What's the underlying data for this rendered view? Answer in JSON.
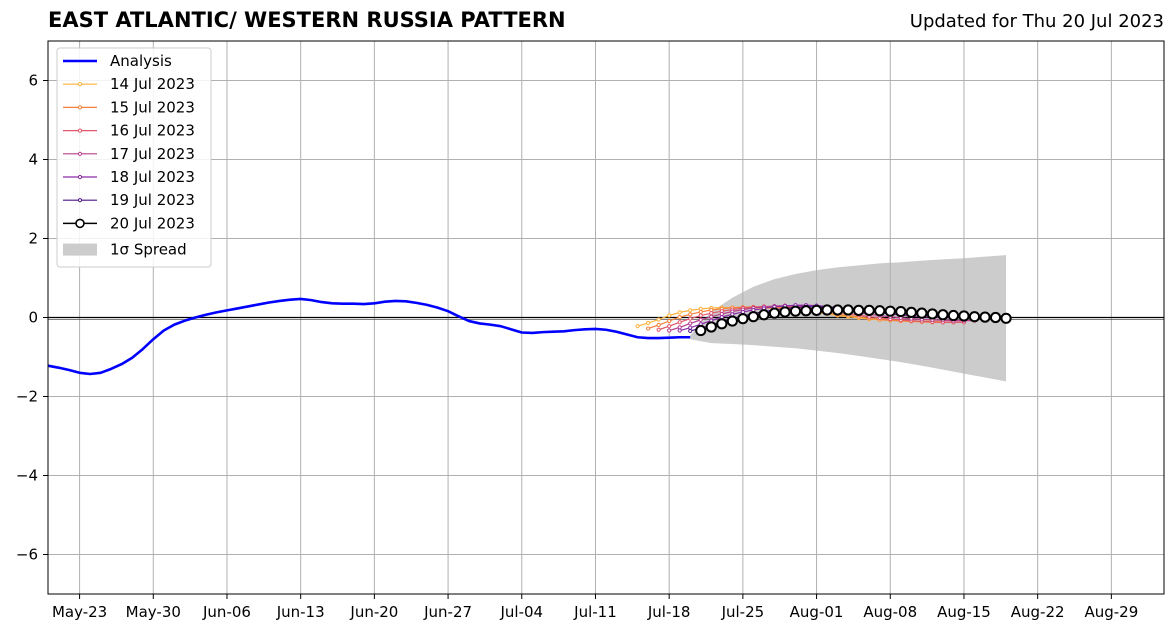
{
  "header": {
    "title": "EAST ATLANTIC/ WESTERN RUSSIA PATTERN",
    "updated": "Updated for Thu 20 Jul 2023"
  },
  "chart_data": {
    "type": "line",
    "title": "EAST ATLANTIC/ WESTERN RUSSIA PATTERN",
    "xlabel": "",
    "ylabel": "",
    "xlim": [
      "2023-05-20",
      "2023-09-03"
    ],
    "ylim": [
      -7,
      7
    ],
    "x_ticks": [
      "May-23",
      "May-30",
      "Jun-06",
      "Jun-13",
      "Jun-20",
      "Jun-27",
      "Jul-04",
      "Jul-11",
      "Jul-18",
      "Jul-25",
      "Aug-01",
      "Aug-08",
      "Aug-15",
      "Aug-22",
      "Aug-29"
    ],
    "x_tick_dates": [
      "2023-05-23",
      "2023-05-30",
      "2023-06-06",
      "2023-06-13",
      "2023-06-20",
      "2023-06-27",
      "2023-07-04",
      "2023-07-11",
      "2023-07-18",
      "2023-07-25",
      "2023-08-01",
      "2023-08-08",
      "2023-08-15",
      "2023-08-22",
      "2023-08-29"
    ],
    "y_ticks": [
      6,
      4,
      2,
      0,
      -2,
      -4,
      -6
    ],
    "y_tick_labels": [
      "6",
      "4",
      "2",
      "0",
      "−2",
      "−4",
      "−6"
    ],
    "grid": true,
    "legend_position": "top-left",
    "series": [
      {
        "name": "Analysis",
        "color": "#0000ff",
        "x": [
          "2023-05-20",
          "2023-05-21",
          "2023-05-22",
          "2023-05-23",
          "2023-05-24",
          "2023-05-25",
          "2023-05-26",
          "2023-05-27",
          "2023-05-28",
          "2023-05-29",
          "2023-05-30",
          "2023-05-31",
          "2023-06-01",
          "2023-06-02",
          "2023-06-03",
          "2023-06-04",
          "2023-06-05",
          "2023-06-06",
          "2023-06-07",
          "2023-06-08",
          "2023-06-09",
          "2023-06-10",
          "2023-06-11",
          "2023-06-12",
          "2023-06-13",
          "2023-06-14",
          "2023-06-15",
          "2023-06-16",
          "2023-06-17",
          "2023-06-18",
          "2023-06-19",
          "2023-06-20",
          "2023-06-21",
          "2023-06-22",
          "2023-06-23",
          "2023-06-24",
          "2023-06-25",
          "2023-06-26",
          "2023-06-27",
          "2023-06-28",
          "2023-06-29",
          "2023-06-30",
          "2023-07-01",
          "2023-07-02",
          "2023-07-03",
          "2023-07-04",
          "2023-07-05",
          "2023-07-06",
          "2023-07-07",
          "2023-07-08",
          "2023-07-09",
          "2023-07-10",
          "2023-07-11",
          "2023-07-12",
          "2023-07-13",
          "2023-07-14",
          "2023-07-15",
          "2023-07-16",
          "2023-07-17",
          "2023-07-18",
          "2023-07-19",
          "2023-07-20"
        ],
        "y": [
          -1.22,
          -1.27,
          -1.33,
          -1.4,
          -1.43,
          -1.4,
          -1.3,
          -1.18,
          -1.02,
          -0.8,
          -0.55,
          -0.33,
          -0.18,
          -0.08,
          0.0,
          0.07,
          0.13,
          0.18,
          0.23,
          0.28,
          0.33,
          0.38,
          0.42,
          0.45,
          0.47,
          0.44,
          0.39,
          0.36,
          0.35,
          0.35,
          0.34,
          0.36,
          0.4,
          0.42,
          0.41,
          0.37,
          0.32,
          0.25,
          0.16,
          0.03,
          -0.09,
          -0.15,
          -0.18,
          -0.22,
          -0.3,
          -0.38,
          -0.39,
          -0.37,
          -0.36,
          -0.35,
          -0.32,
          -0.3,
          -0.29,
          -0.31,
          -0.36,
          -0.43,
          -0.5,
          -0.52,
          -0.52,
          -0.51,
          -0.5,
          -0.5
        ]
      },
      {
        "name": "14 Jul 2023",
        "color": "#fcb13a",
        "x": [
          "2023-07-15",
          "2023-07-16",
          "2023-07-17",
          "2023-07-18",
          "2023-07-19",
          "2023-07-20",
          "2023-07-21",
          "2023-07-22",
          "2023-07-23",
          "2023-07-24",
          "2023-07-25",
          "2023-07-26",
          "2023-07-27",
          "2023-07-28",
          "2023-07-29",
          "2023-07-30",
          "2023-07-31",
          "2023-08-01",
          "2023-08-02",
          "2023-08-03",
          "2023-08-04",
          "2023-08-05",
          "2023-08-06",
          "2023-08-07",
          "2023-08-08",
          "2023-08-09",
          "2023-08-10",
          "2023-08-11",
          "2023-08-12",
          "2023-08-13"
        ],
        "y": [
          -0.22,
          -0.14,
          -0.05,
          0.05,
          0.13,
          0.18,
          0.22,
          0.24,
          0.25,
          0.25,
          0.25,
          0.25,
          0.24,
          0.23,
          0.21,
          0.18,
          0.15,
          0.12,
          0.09,
          0.05,
          0.02,
          -0.01,
          -0.04,
          -0.06,
          -0.07,
          -0.08,
          -0.09,
          -0.09,
          -0.1,
          -0.1
        ]
      },
      {
        "name": "15 Jul 2023",
        "color": "#f5803b",
        "x": [
          "2023-07-16",
          "2023-07-17",
          "2023-07-18",
          "2023-07-19",
          "2023-07-20",
          "2023-07-21",
          "2023-07-22",
          "2023-07-23",
          "2023-07-24",
          "2023-07-25",
          "2023-07-26",
          "2023-07-27",
          "2023-07-28",
          "2023-07-29",
          "2023-07-30",
          "2023-07-31",
          "2023-08-01",
          "2023-08-02",
          "2023-08-03",
          "2023-08-04",
          "2023-08-05",
          "2023-08-06",
          "2023-08-07",
          "2023-08-08",
          "2023-08-09",
          "2023-08-10",
          "2023-08-11",
          "2023-08-12",
          "2023-08-13",
          "2023-08-14"
        ],
        "y": [
          -0.28,
          -0.19,
          -0.09,
          0.01,
          0.08,
          0.14,
          0.19,
          0.22,
          0.25,
          0.26,
          0.27,
          0.27,
          0.26,
          0.24,
          0.22,
          0.19,
          0.16,
          0.12,
          0.08,
          0.05,
          0.02,
          -0.02,
          -0.05,
          -0.07,
          -0.09,
          -0.1,
          -0.11,
          -0.12,
          -0.12,
          -0.12
        ]
      },
      {
        "name": "16 Jul 2023",
        "color": "#e0566a",
        "x": [
          "2023-07-17",
          "2023-07-18",
          "2023-07-19",
          "2023-07-20",
          "2023-07-21",
          "2023-07-22",
          "2023-07-23",
          "2023-07-24",
          "2023-07-25",
          "2023-07-26",
          "2023-07-27",
          "2023-07-28",
          "2023-07-29",
          "2023-07-30",
          "2023-07-31",
          "2023-08-01",
          "2023-08-02",
          "2023-08-03",
          "2023-08-04",
          "2023-08-05",
          "2023-08-06",
          "2023-08-07",
          "2023-08-08",
          "2023-08-09",
          "2023-08-10",
          "2023-08-11",
          "2023-08-12",
          "2023-08-13",
          "2023-08-14",
          "2023-08-15"
        ],
        "y": [
          -0.31,
          -0.22,
          -0.12,
          -0.03,
          0.05,
          0.11,
          0.16,
          0.2,
          0.24,
          0.26,
          0.28,
          0.28,
          0.27,
          0.26,
          0.24,
          0.21,
          0.17,
          0.13,
          0.1,
          0.06,
          0.02,
          -0.01,
          -0.04,
          -0.06,
          -0.08,
          -0.1,
          -0.11,
          -0.12,
          -0.12,
          -0.12
        ]
      },
      {
        "name": "17 Jul 2023",
        "color": "#b93e8b",
        "x": [
          "2023-07-18",
          "2023-07-19",
          "2023-07-20",
          "2023-07-21",
          "2023-07-22",
          "2023-07-23",
          "2023-07-24",
          "2023-07-25",
          "2023-07-26",
          "2023-07-27",
          "2023-07-28",
          "2023-07-29",
          "2023-07-30",
          "2023-07-31",
          "2023-08-01",
          "2023-08-02",
          "2023-08-03",
          "2023-08-04",
          "2023-08-05",
          "2023-08-06",
          "2023-08-07",
          "2023-08-08",
          "2023-08-09",
          "2023-08-10",
          "2023-08-11",
          "2023-08-12",
          "2023-08-13",
          "2023-08-14",
          "2023-08-15",
          "2023-08-16"
        ],
        "y": [
          -0.33,
          -0.25,
          -0.15,
          -0.06,
          0.02,
          0.09,
          0.15,
          0.2,
          0.24,
          0.27,
          0.29,
          0.3,
          0.3,
          0.28,
          0.26,
          0.23,
          0.2,
          0.16,
          0.12,
          0.08,
          0.05,
          0.02,
          -0.01,
          -0.03,
          -0.05,
          -0.06,
          -0.07,
          -0.08,
          -0.08,
          -0.08
        ]
      },
      {
        "name": "18 Jul 2023",
        "color": "#8a2aa6",
        "x": [
          "2023-07-19",
          "2023-07-20",
          "2023-07-21",
          "2023-07-22",
          "2023-07-23",
          "2023-07-24",
          "2023-07-25",
          "2023-07-26",
          "2023-07-27",
          "2023-07-28",
          "2023-07-29",
          "2023-07-30",
          "2023-07-31",
          "2023-08-01",
          "2023-08-02",
          "2023-08-03",
          "2023-08-04",
          "2023-08-05",
          "2023-08-06",
          "2023-08-07",
          "2023-08-08",
          "2023-08-09",
          "2023-08-10",
          "2023-08-11",
          "2023-08-12",
          "2023-08-13",
          "2023-08-14",
          "2023-08-15",
          "2023-08-16",
          "2023-08-17"
        ],
        "y": [
          -0.33,
          -0.26,
          -0.17,
          -0.08,
          0.01,
          0.08,
          0.14,
          0.19,
          0.23,
          0.27,
          0.29,
          0.31,
          0.31,
          0.3,
          0.28,
          0.25,
          0.22,
          0.19,
          0.15,
          0.12,
          0.09,
          0.06,
          0.04,
          0.02,
          0.01,
          0.0,
          -0.01,
          -0.01,
          -0.02,
          -0.02
        ]
      },
      {
        "name": "19 Jul 2023",
        "color": "#4a1486",
        "x": [
          "2023-07-20",
          "2023-07-21",
          "2023-07-22",
          "2023-07-23",
          "2023-07-24",
          "2023-07-25",
          "2023-07-26",
          "2023-07-27",
          "2023-07-28",
          "2023-07-29",
          "2023-07-30",
          "2023-07-31",
          "2023-08-01",
          "2023-08-02",
          "2023-08-03",
          "2023-08-04",
          "2023-08-05",
          "2023-08-06",
          "2023-08-07",
          "2023-08-08",
          "2023-08-09",
          "2023-08-10",
          "2023-08-11",
          "2023-08-12",
          "2023-08-13",
          "2023-08-14",
          "2023-08-15",
          "2023-08-16",
          "2023-08-17",
          "2023-08-18"
        ],
        "y": [
          -0.34,
          -0.27,
          -0.19,
          -0.11,
          -0.03,
          0.04,
          0.1,
          0.15,
          0.19,
          0.23,
          0.25,
          0.27,
          0.27,
          0.26,
          0.25,
          0.23,
          0.21,
          0.18,
          0.16,
          0.14,
          0.12,
          0.1,
          0.09,
          0.08,
          0.07,
          0.06,
          0.05,
          0.04,
          0.03,
          0.02
        ]
      },
      {
        "name": "20 Jul 2023",
        "color": "#000000",
        "marker_fill": "#ffffff",
        "x": [
          "2023-07-21",
          "2023-07-22",
          "2023-07-23",
          "2023-07-24",
          "2023-07-25",
          "2023-07-26",
          "2023-07-27",
          "2023-07-28",
          "2023-07-29",
          "2023-07-30",
          "2023-07-31",
          "2023-08-01",
          "2023-08-02",
          "2023-08-03",
          "2023-08-04",
          "2023-08-05",
          "2023-08-06",
          "2023-08-07",
          "2023-08-08",
          "2023-08-09",
          "2023-08-10",
          "2023-08-11",
          "2023-08-12",
          "2023-08-13",
          "2023-08-14",
          "2023-08-15",
          "2023-08-16",
          "2023-08-17",
          "2023-08-18",
          "2023-08-19"
        ],
        "y": [
          -0.33,
          -0.24,
          -0.16,
          -0.09,
          -0.03,
          0.02,
          0.07,
          0.11,
          0.14,
          0.16,
          0.17,
          0.18,
          0.19,
          0.19,
          0.19,
          0.18,
          0.18,
          0.17,
          0.16,
          0.15,
          0.13,
          0.11,
          0.09,
          0.07,
          0.05,
          0.04,
          0.02,
          0.01,
          0.0,
          -0.02
        ]
      }
    ],
    "spread": {
      "name": "1σ Spread",
      "color": "#cccccc",
      "x": [
        "2023-07-20",
        "2023-07-22",
        "2023-07-24",
        "2023-07-26",
        "2023-07-28",
        "2023-07-30",
        "2023-08-01",
        "2023-08-03",
        "2023-08-05",
        "2023-08-07",
        "2023-08-09",
        "2023-08-11",
        "2023-08-13",
        "2023-08-15",
        "2023-08-17",
        "2023-08-19"
      ],
      "upper": [
        -0.45,
        0.15,
        0.5,
        0.78,
        0.97,
        1.1,
        1.2,
        1.27,
        1.32,
        1.37,
        1.4,
        1.44,
        1.47,
        1.5,
        1.54,
        1.58
      ],
      "lower": [
        -0.55,
        -0.65,
        -0.67,
        -0.7,
        -0.74,
        -0.78,
        -0.84,
        -0.9,
        -0.97,
        -1.05,
        -1.13,
        -1.22,
        -1.32,
        -1.42,
        -1.52,
        -1.62
      ]
    },
    "reference_line": {
      "y": 0,
      "color": "#555555"
    }
  }
}
